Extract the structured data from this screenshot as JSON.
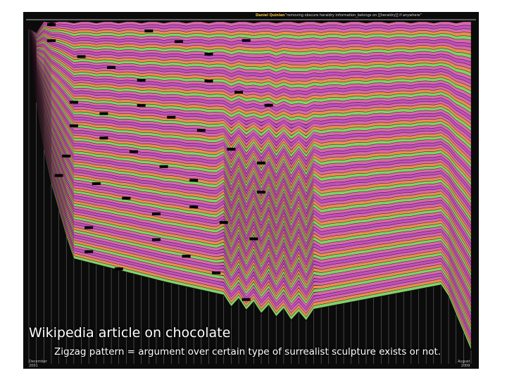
{
  "chart_data": {
    "type": "area",
    "title": "Wikipedia article on chocolate",
    "subtitle": "Zigzag pattern = argument over certain type of surrealist sculpture exists or not.",
    "x_start_label": [
      "December",
      "2001"
    ],
    "x_end_label": [
      "August",
      "2009"
    ],
    "top_editor": "Daniel Quinlan",
    "top_comment": "\"removing obscure heraldry information_belongs on [[heraldry]] if anywhere\"",
    "revision_count": 60,
    "zigzag_revision_range": [
      26,
      38
    ],
    "colors": {
      "pink": "#d86aa8",
      "magenta": "#c050c0",
      "salmon": "#e07a78",
      "orange": "#e8904e",
      "violet": "#9a4fcf",
      "green": "#7fd36a",
      "lime": "#b6e06a",
      "blue": "#6f80e0",
      "white": "#e8e8e8",
      "grey": "#9a9a9a"
    }
  }
}
